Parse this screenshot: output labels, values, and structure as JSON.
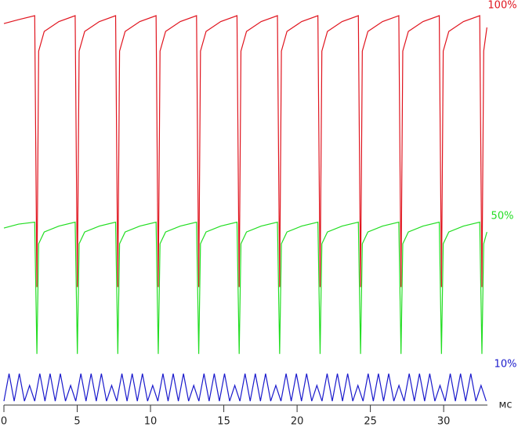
{
  "chart_data": {
    "type": "line",
    "x_label": "мс",
    "xlim": [
      0,
      33.2
    ],
    "xticks": [
      0,
      5,
      10,
      15,
      20,
      25,
      30
    ],
    "ylim": [
      0,
      100
    ],
    "series": [
      {
        "name": "100%",
        "color": "#e0141e",
        "x": [
          0,
          1.0,
          2.1,
          2.25,
          2.37,
          2.75,
          3.75,
          4.86,
          5.01,
          5.13,
          5.51,
          6.51,
          7.62,
          7.77,
          7.89,
          8.27,
          9.27,
          10.38,
          10.53,
          10.65,
          11.03,
          12.03,
          13.14,
          13.29,
          13.41,
          13.79,
          14.79,
          15.9,
          16.05,
          16.17,
          16.55,
          17.55,
          18.66,
          18.81,
          18.93,
          19.31,
          20.31,
          21.42,
          21.57,
          21.69,
          22.07,
          23.07,
          24.18,
          24.33,
          24.45,
          24.83,
          25.83,
          26.94,
          27.09,
          27.21,
          27.59,
          28.59,
          29.7,
          29.85,
          29.97,
          30.35,
          31.35,
          32.46,
          32.61,
          32.73,
          32.95
        ],
        "values": [
          97,
          98,
          99,
          30,
          90,
          95,
          97.5,
          99,
          30,
          90,
          95,
          97.5,
          99,
          30,
          90,
          95,
          97.5,
          99,
          30,
          90,
          95,
          97.5,
          99,
          30,
          90,
          95,
          97.5,
          99,
          30,
          90,
          95,
          97.5,
          99,
          30,
          90,
          95,
          97.5,
          99,
          30,
          90,
          95,
          97.5,
          99,
          30,
          90,
          95,
          97.5,
          99,
          30,
          90,
          95,
          97.5,
          99,
          30,
          90,
          95,
          97.5,
          99,
          30,
          90,
          96
        ]
      },
      {
        "name": "50%",
        "color": "#22dd22",
        "x": [
          0,
          1.0,
          2.1,
          2.25,
          2.37,
          2.75,
          3.75,
          4.86,
          5.01,
          5.13,
          5.51,
          6.51,
          7.62,
          7.77,
          7.89,
          8.27,
          9.27,
          10.38,
          10.53,
          10.65,
          11.03,
          12.03,
          13.14,
          13.29,
          13.41,
          13.79,
          14.79,
          15.9,
          16.05,
          16.17,
          16.55,
          17.55,
          18.66,
          18.81,
          18.93,
          19.31,
          20.31,
          21.42,
          21.57,
          21.69,
          22.07,
          23.07,
          24.18,
          24.33,
          24.45,
          24.83,
          25.83,
          26.94,
          27.09,
          27.21,
          27.59,
          28.59,
          29.7,
          29.85,
          29.97,
          30.35,
          31.35,
          32.46,
          32.61,
          32.73,
          32.95
        ],
        "values": [
          45,
          46,
          46.5,
          13,
          41,
          44,
          45.5,
          46.5,
          13,
          41,
          44,
          45.5,
          46.5,
          13,
          41,
          44,
          45.5,
          46.5,
          13,
          41,
          44,
          45.5,
          46.5,
          13,
          41,
          44,
          45.5,
          46.5,
          13,
          41,
          44,
          45.5,
          46.5,
          13,
          41,
          44,
          45.5,
          46.5,
          13,
          41,
          44,
          45.5,
          46.5,
          13,
          41,
          44,
          45.5,
          46.5,
          13,
          41,
          44,
          45.5,
          46.5,
          13,
          41,
          44,
          45.5,
          46.5,
          13,
          41,
          44
        ]
      },
      {
        "name": "10%",
        "color": "#1a1acc",
        "x": [
          0,
          0.35,
          0.7,
          1.05,
          1.4,
          1.75,
          2.1,
          2.45,
          2.8,
          3.15,
          3.5,
          3.85,
          4.2,
          4.55,
          4.9,
          5.25,
          5.6,
          5.95,
          6.3,
          6.65,
          7,
          7.35,
          7.7,
          8.05,
          8.4,
          8.75,
          9.1,
          9.45,
          9.8,
          10.15,
          10.5,
          10.85,
          11.2,
          11.55,
          11.9,
          12.25,
          12.6,
          12.95,
          13.3,
          13.65,
          14,
          14.35,
          14.7,
          15.05,
          15.4,
          15.75,
          16.1,
          16.45,
          16.8,
          17.15,
          17.5,
          17.85,
          18.2,
          18.55,
          18.9,
          19.25,
          19.6,
          19.95,
          20.3,
          20.65,
          21,
          21.35,
          21.7,
          22.05,
          22.4,
          22.75,
          23.1,
          23.45,
          23.8,
          24.15,
          24.5,
          24.85,
          25.2,
          25.55,
          25.9,
          26.25,
          26.6,
          26.95,
          27.3,
          27.65,
          28,
          28.35,
          28.7,
          29.05,
          29.4,
          29.75,
          30.1,
          30.45,
          30.8,
          31.15,
          31.5,
          31.85,
          32.2,
          32.55,
          32.9
        ],
        "values": [
          1,
          8,
          1,
          8,
          1,
          5,
          1,
          8,
          1,
          8,
          1,
          8,
          1,
          5,
          1,
          8,
          1,
          8,
          1,
          8,
          1,
          5,
          1,
          8,
          1,
          8,
          1,
          8,
          1,
          5,
          1,
          8,
          1,
          8,
          1,
          8,
          1,
          5,
          1,
          8,
          1,
          8,
          1,
          8,
          1,
          5,
          1,
          8,
          1,
          8,
          1,
          8,
          1,
          5,
          1,
          8,
          1,
          8,
          1,
          8,
          1,
          5,
          1,
          8,
          1,
          8,
          1,
          8,
          1,
          5,
          1,
          8,
          1,
          8,
          1,
          8,
          1,
          5,
          1,
          8,
          1,
          8,
          1,
          8,
          1,
          5,
          1,
          8,
          1,
          8,
          1,
          8,
          1,
          5,
          1
        ]
      }
    ]
  }
}
